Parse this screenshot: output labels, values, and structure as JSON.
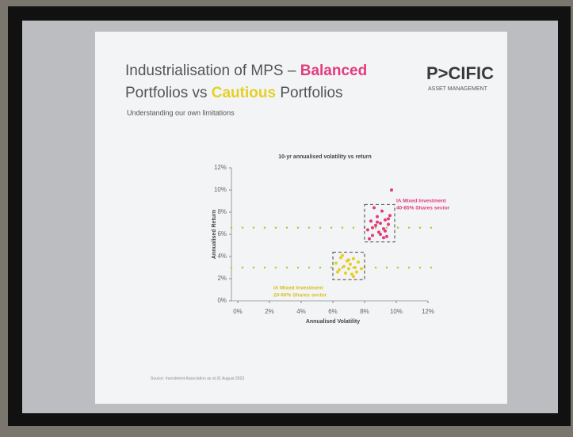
{
  "slide": {
    "title_parts": [
      "Industrialisation of MPS – ",
      "Balanced",
      "Portfolios vs ",
      "Cautious",
      " Portfolios"
    ],
    "subtitle": "Understanding our own limitations",
    "logo": "P>CIFIC",
    "logo_sub": "ASSET MANAGEMENT",
    "footnote": "Source: Investment Association as at 31 August 2023"
  },
  "chart_data": {
    "type": "scatter",
    "title": "10-yr annualised volatility vs return",
    "xlabel": "Annualised Volatility",
    "ylabel": "Annualised Return",
    "xlim": [
      0,
      12
    ],
    "ylim": [
      0,
      12
    ],
    "xticks": [
      {
        "value": 0,
        "label": "0%"
      },
      {
        "value": 2,
        "label": "2%"
      },
      {
        "value": 4,
        "label": "4%"
      },
      {
        "value": 6,
        "label": "6%"
      },
      {
        "value": 8,
        "label": "8%"
      },
      {
        "value": 10,
        "label": "10%"
      },
      {
        "value": 12,
        "label": "12%"
      }
    ],
    "yticks": [
      {
        "value": 0,
        "label": "0%"
      },
      {
        "value": 2,
        "label": "2%"
      },
      {
        "value": 4,
        "label": "4%"
      },
      {
        "value": 6,
        "label": "6%"
      },
      {
        "value": 8,
        "label": "8%"
      },
      {
        "value": 10,
        "label": "10%"
      },
      {
        "value": 12,
        "label": "12%"
      }
    ],
    "series": [
      {
        "color": "#e23c7e",
        "x": [
          8.2,
          8.4,
          8.5,
          8.7,
          8.8,
          8.9,
          9.0,
          9.1,
          9.2,
          9.3,
          9.4,
          9.5,
          9.6,
          8.6,
          8.3,
          9.0,
          9.3,
          8.8,
          9.5,
          9.2,
          8.5,
          9.7
        ],
        "y": [
          6.4,
          7.2,
          5.9,
          6.8,
          7.6,
          6.2,
          7.0,
          8.1,
          6.5,
          7.3,
          5.8,
          6.9,
          7.7,
          8.4,
          5.6,
          6.0,
          6.3,
          7.1,
          7.4,
          5.7,
          6.6,
          10.0
        ]
      },
      {
        "color": "#e6cf25",
        "x": [
          6.2,
          6.4,
          6.5,
          6.7,
          6.8,
          6.9,
          7.0,
          7.1,
          7.2,
          7.3,
          7.4,
          7.5,
          7.6,
          7.8,
          6.6,
          7.0,
          7.3,
          6.3
        ],
        "y": [
          3.4,
          2.8,
          3.9,
          3.1,
          2.5,
          3.6,
          2.9,
          3.3,
          2.4,
          3.8,
          3.0,
          2.6,
          3.5,
          2.9,
          4.1,
          3.7,
          2.2,
          2.6
        ]
      }
    ],
    "reference_lines": [
      {
        "value": 6.6,
        "color": "#a6cc3c"
      },
      {
        "value": 3,
        "color": "#a6cc3c"
      }
    ],
    "annotations": [
      {
        "lines": [
          "IA Mixed Investment",
          "40-85% Shares sector"
        ],
        "color": "#e23c7e"
      },
      {
        "lines": [
          "IA Mixed Investment",
          "20-60% Shares sector"
        ],
        "color": "#d9bf1c"
      }
    ]
  }
}
